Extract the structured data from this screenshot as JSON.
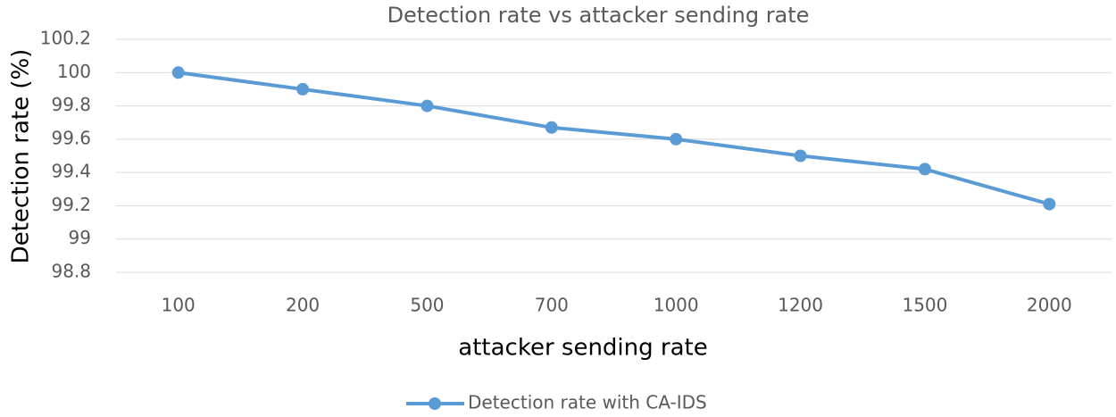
{
  "chart_data": {
    "type": "line",
    "title": "Detection rate vs attacker sending rate",
    "x_label": "attacker sending rate",
    "y_label": "Detection rate (%)",
    "categories": [
      "100",
      "200",
      "500",
      "700",
      "1000",
      "1200",
      "1500",
      "2000"
    ],
    "series": [
      {
        "name": "Detection rate with CA-IDS",
        "color": "#5b9bd5",
        "values": [
          100,
          99.9,
          99.8,
          99.67,
          99.6,
          99.5,
          99.42,
          99.21
        ]
      }
    ],
    "ylim": [
      98.8,
      100.2
    ],
    "yticks": [
      98.8,
      99,
      99.2,
      99.4,
      99.6,
      99.8,
      100,
      100.2
    ],
    "grid": true,
    "legend": "bottom"
  }
}
